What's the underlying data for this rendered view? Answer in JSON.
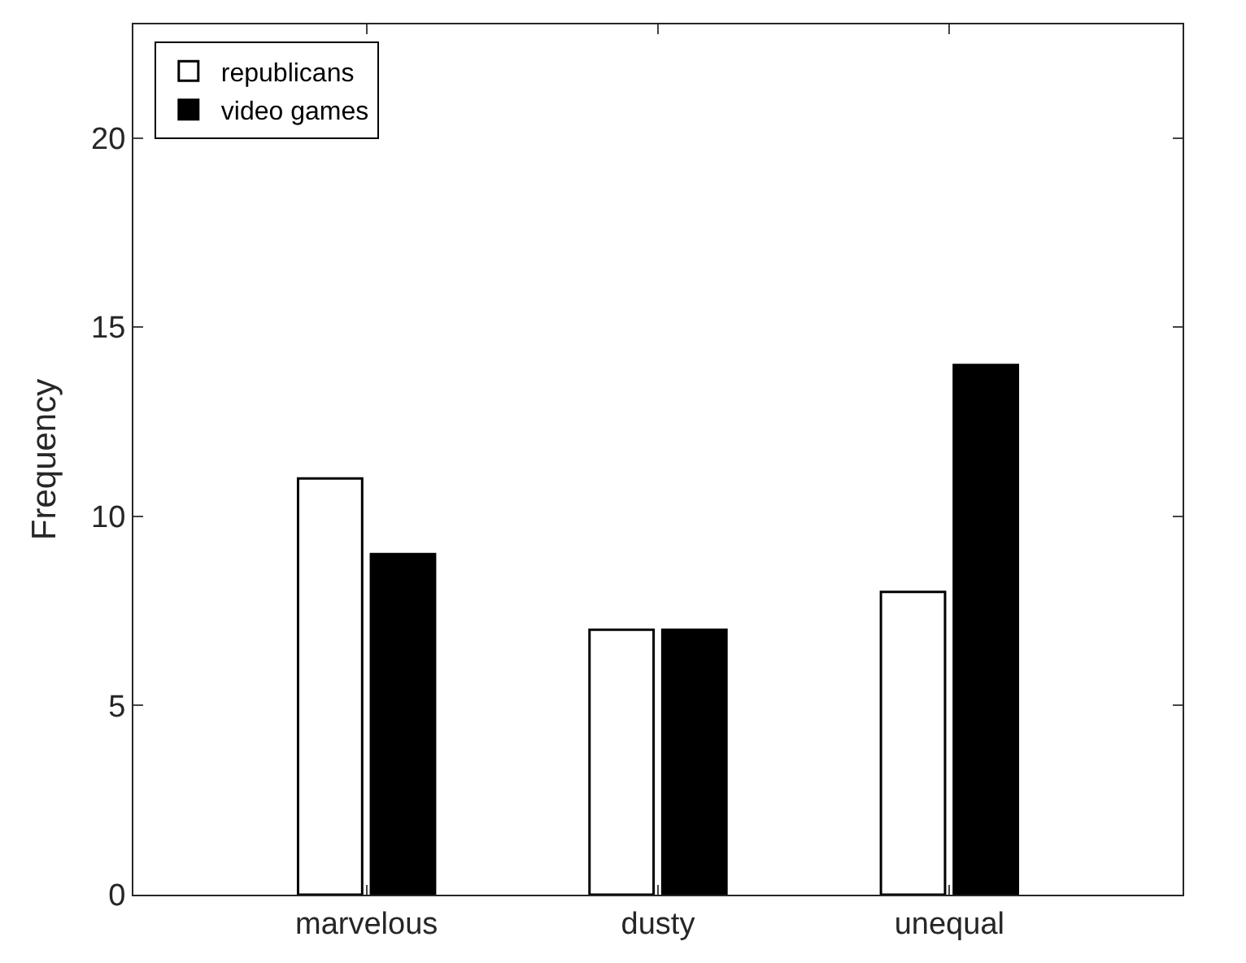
{
  "chart_data": {
    "type": "bar",
    "ylabel": "Frequency",
    "categories": [
      "marvelous",
      "dusty",
      "unequal"
    ],
    "series": [
      {
        "name": "republicans",
        "color": "#ffffff",
        "values": [
          11,
          7,
          8
        ]
      },
      {
        "name": "video games",
        "color": "#000000",
        "values": [
          9,
          7,
          14
        ]
      }
    ],
    "ylim": [
      0,
      23
    ],
    "yticks": [
      0,
      5,
      10,
      15,
      20
    ],
    "legend": "top left"
  }
}
